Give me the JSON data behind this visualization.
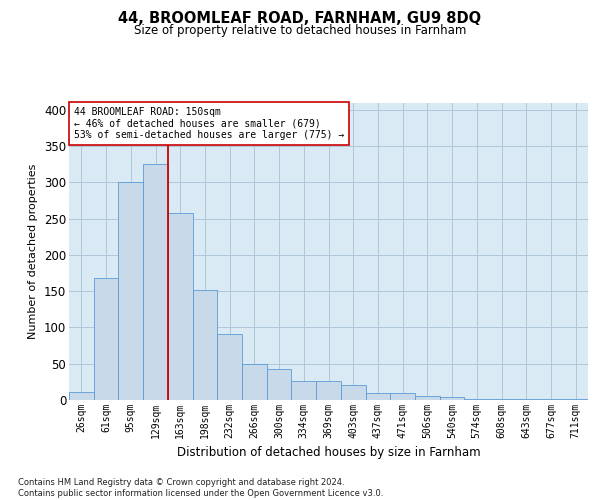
{
  "title": "44, BROOMLEAF ROAD, FARNHAM, GU9 8DQ",
  "subtitle": "Size of property relative to detached houses in Farnham",
  "xlabel": "Distribution of detached houses by size in Farnham",
  "ylabel": "Number of detached properties",
  "bar_color": "#c8d9ea",
  "bar_edge_color": "#5b9bd5",
  "grid_color": "#aec6d8",
  "background_color": "#daeaf5",
  "categories": [
    "26sqm",
    "61sqm",
    "95sqm",
    "129sqm",
    "163sqm",
    "198sqm",
    "232sqm",
    "266sqm",
    "300sqm",
    "334sqm",
    "369sqm",
    "403sqm",
    "437sqm",
    "471sqm",
    "506sqm",
    "540sqm",
    "574sqm",
    "608sqm",
    "643sqm",
    "677sqm",
    "711sqm"
  ],
  "values": [
    11,
    168,
    300,
    325,
    258,
    152,
    91,
    50,
    43,
    26,
    26,
    21,
    10,
    9,
    5,
    4,
    1,
    2,
    1,
    2,
    2
  ],
  "property_line_x": 3.5,
  "property_line_color": "#cc0000",
  "annotation_text": "44 BROOMLEAF ROAD: 150sqm\n← 46% of detached houses are smaller (679)\n53% of semi-detached houses are larger (775) →",
  "annotation_box_color": "#ffffff",
  "annotation_box_edge": "#cc0000",
  "ylim": [
    0,
    410
  ],
  "yticks": [
    0,
    50,
    100,
    150,
    200,
    250,
    300,
    350,
    400
  ],
  "footnote": "Contains HM Land Registry data © Crown copyright and database right 2024.\nContains public sector information licensed under the Open Government Licence v3.0.",
  "fig_bg": "#ffffff"
}
